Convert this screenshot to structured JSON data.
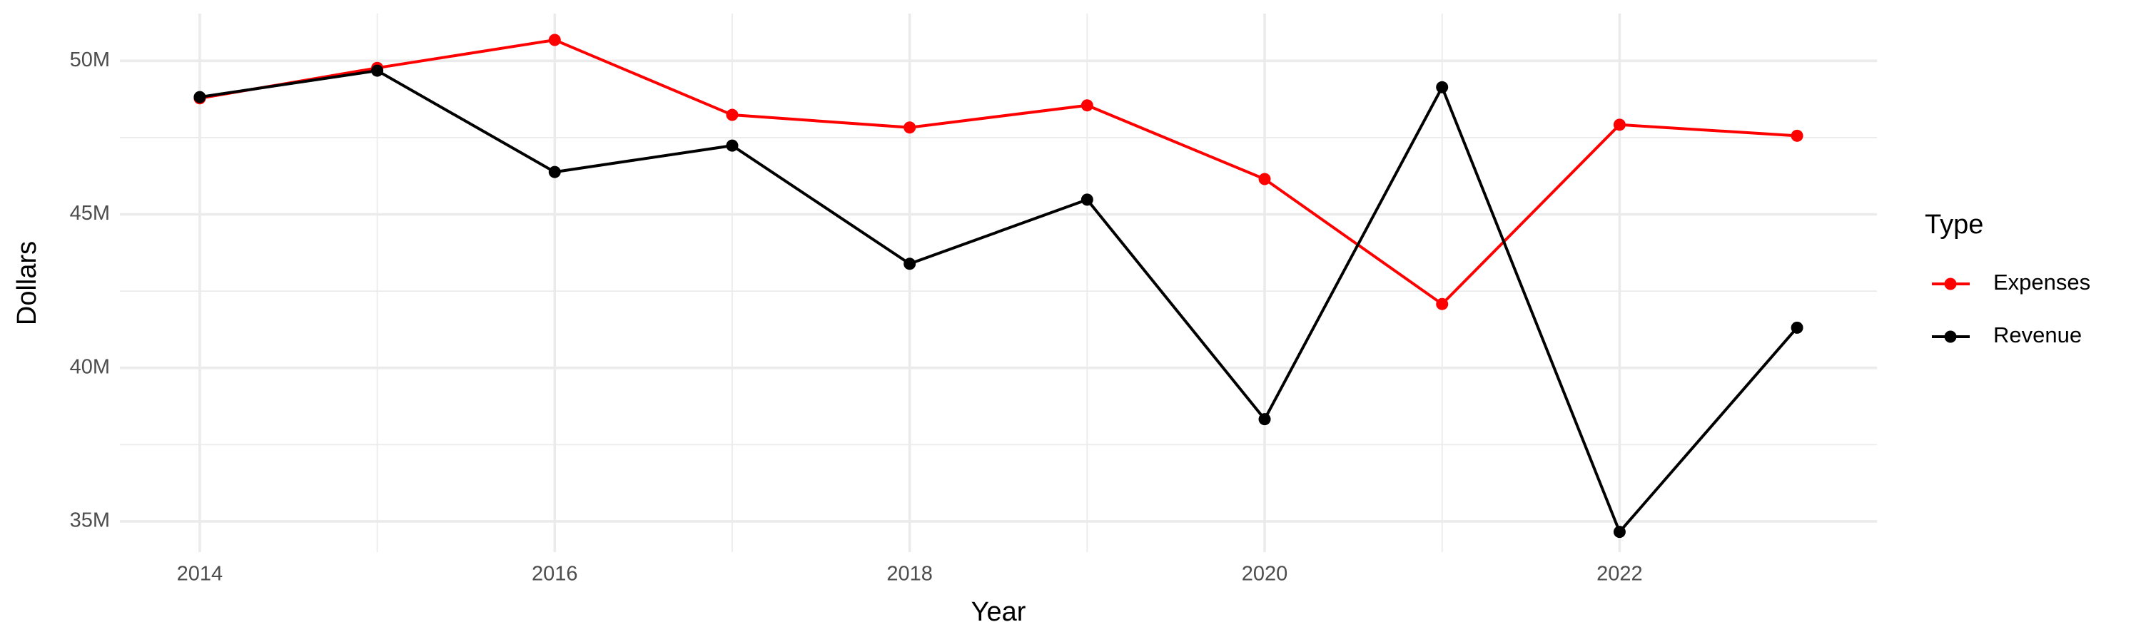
{
  "chart_data": {
    "type": "line",
    "x_label": "Year",
    "y_label": "Dollars",
    "legend_title": "Type",
    "legend_position": "right",
    "grid": true,
    "x": [
      2014,
      2015,
      2016,
      2017,
      2018,
      2019,
      2020,
      2021,
      2022,
      2023
    ],
    "series": [
      {
        "name": "Expenses",
        "color": "#ff0000",
        "values": [
          48780000,
          49770000,
          50680000,
          48240000,
          47830000,
          48550000,
          46150000,
          42080000,
          47920000,
          47560000
        ]
      },
      {
        "name": "Revenue",
        "color": "#000000",
        "values": [
          48820000,
          49680000,
          46380000,
          47240000,
          43390000,
          45480000,
          38330000,
          49140000,
          34660000,
          41310000
        ]
      }
    ],
    "xlim": [
      2013.55,
      2023.45
    ],
    "xticks": [
      2014,
      2016,
      2018,
      2020,
      2022
    ],
    "ylim": [
      34000000,
      51540000
    ],
    "yticks": [
      {
        "value": 35000000,
        "label": "35M"
      },
      {
        "value": 40000000,
        "label": "40M"
      },
      {
        "value": 45000000,
        "label": "45M"
      },
      {
        "value": 50000000,
        "label": "50M"
      }
    ]
  }
}
